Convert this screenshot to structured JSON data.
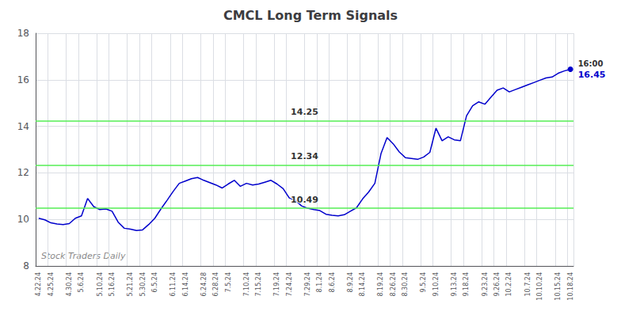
{
  "chart_data": {
    "type": "line",
    "title": "CMCL Long Term Signals",
    "categories": [
      "4.22.24",
      null,
      "4.25.24",
      null,
      null,
      "4.30.24",
      null,
      "5.6.24",
      null,
      null,
      "5.10.24",
      null,
      "5.16.24",
      null,
      null,
      "5.21.24",
      null,
      "5.30.24",
      null,
      "6.5.24",
      null,
      null,
      "6.11.24",
      null,
      "6.14.24",
      null,
      null,
      "6.24.28",
      null,
      "6.28.24",
      null,
      "7.5.24",
      null,
      null,
      "7.10.24",
      null,
      "7.15.24",
      null,
      null,
      "7.19.24",
      null,
      "7.24.24",
      null,
      null,
      "7.29.24",
      null,
      "8.1.24",
      null,
      "8.6.24",
      null,
      null,
      "8.9.24",
      null,
      "8.14.24",
      null,
      null,
      "8.19.24",
      null,
      "8.26.24",
      null,
      "8.30.24",
      null,
      null,
      "9.5.24",
      null,
      "9.10.24",
      null,
      null,
      "9.13.24",
      null,
      "9.18.24",
      null,
      null,
      "9.23.24",
      null,
      "9.26.24",
      null,
      "10.2.24",
      null,
      null,
      "10.7.24",
      null,
      "10.10.24",
      null,
      null,
      "10.15.24",
      null,
      "10.18.24"
    ],
    "values": [
      10.05,
      9.98,
      9.85,
      9.8,
      9.78,
      9.82,
      10.05,
      10.15,
      10.9,
      10.55,
      10.42,
      10.45,
      10.35,
      9.88,
      9.62,
      9.58,
      9.52,
      9.55,
      9.78,
      10.05,
      10.45,
      10.82,
      11.2,
      11.55,
      11.65,
      11.75,
      11.8,
      11.68,
      11.58,
      11.48,
      11.35,
      11.52,
      11.68,
      11.42,
      11.55,
      11.48,
      11.52,
      11.6,
      11.68,
      11.52,
      11.32,
      10.92,
      10.82,
      10.58,
      10.48,
      10.42,
      10.38,
      10.22,
      10.18,
      10.15,
      10.2,
      10.35,
      10.5,
      10.88,
      11.18,
      11.55,
      12.82,
      13.52,
      13.25,
      12.9,
      12.65,
      12.62,
      12.58,
      12.68,
      12.88,
      13.92,
      13.38,
      13.55,
      13.42,
      13.38,
      14.45,
      14.88,
      15.05,
      14.95,
      15.25,
      15.55,
      15.65,
      15.48,
      15.58,
      15.68,
      15.78,
      15.88,
      15.98,
      16.08,
      16.12,
      16.28,
      16.38,
      16.45
    ],
    "color": "#0000cc",
    "ylim": [
      8,
      18
    ],
    "yticks": [
      8,
      10,
      12,
      14,
      16,
      18
    ],
    "grid": true,
    "hlines": [
      {
        "y": 10.49,
        "label": "10.49",
        "color": "#55ee55"
      },
      {
        "y": 12.34,
        "label": "12.34",
        "color": "#55ee55"
      },
      {
        "y": 14.25,
        "label": "14.25",
        "color": "#55ee55"
      }
    ],
    "last_point_label": "16:00",
    "watermark": "Stock Traders Daily"
  }
}
